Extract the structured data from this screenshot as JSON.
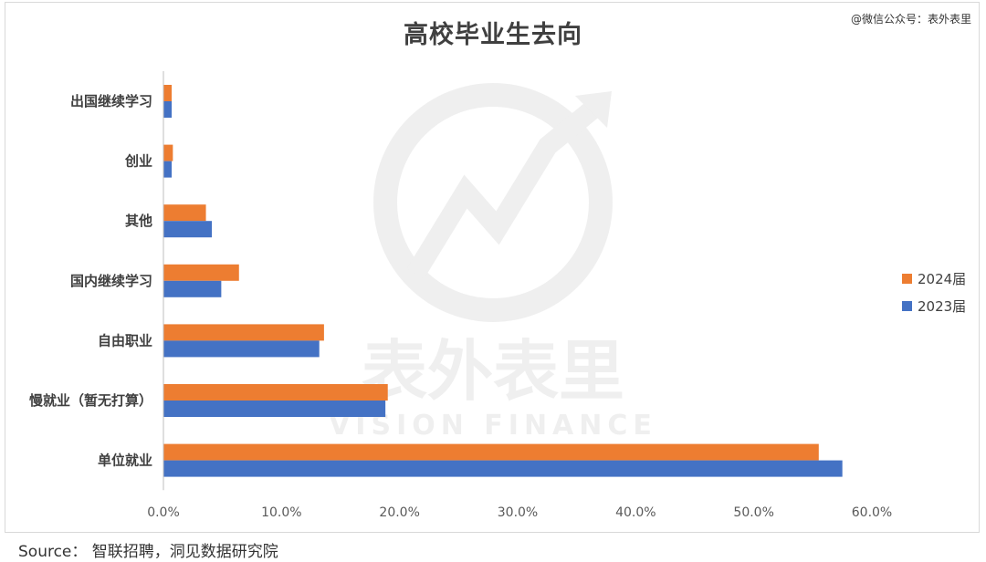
{
  "credit": "@微信公众号：表外表里",
  "source": "Source：  智联招聘，洞见数据研究院",
  "chart_data": {
    "type": "bar",
    "orientation": "horizontal",
    "title": "高校毕业生去向",
    "categories": [
      "出国继续学习",
      "创业",
      "其他",
      "国内继续学习",
      "自由职业",
      "慢就业（暂无打算）",
      "单位就业"
    ],
    "series": [
      {
        "name": "2024届",
        "color": "#ED7D31",
        "values": [
          0.7,
          0.8,
          3.6,
          6.4,
          13.6,
          19.0,
          55.5
        ]
      },
      {
        "name": "2023届",
        "color": "#4472C4",
        "values": [
          0.7,
          0.7,
          4.1,
          4.9,
          13.2,
          18.8,
          57.5
        ]
      }
    ],
    "xlim": [
      0,
      60
    ],
    "xticks": [
      "0.0%",
      "10.0%",
      "20.0%",
      "30.0%",
      "40.0%",
      "50.0%",
      "60.0%"
    ],
    "legend_position": "right",
    "grid": false
  },
  "watermark": {
    "text_cn": "表外表里",
    "text_en": "VISION FINANCE"
  }
}
